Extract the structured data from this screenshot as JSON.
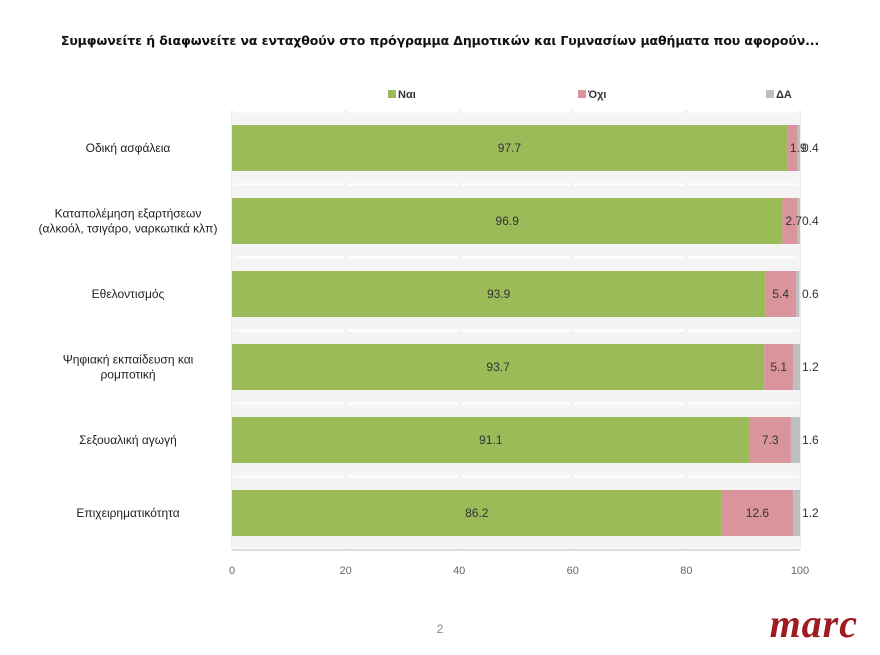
{
  "page": {
    "title": "Συμφωνείτε ή διαφωνείτε να ενταχθούν στο πρόγραμμα Δημοτικών και Γυμνασίων μαθήματα που αφορούν...",
    "page_number": "2",
    "logo_text": "marc"
  },
  "colors": {
    "yes": "#9bbb59",
    "no": "#d9959b",
    "dk": "#bfbfbf",
    "logo": "#9e1b22"
  },
  "chart_data": {
    "type": "bar",
    "orientation": "horizontal",
    "stacked": true,
    "title": "Συμφωνείτε ή διαφωνείτε να ενταχθούν στο πρόγραμμα Δημοτικών και Γυμνασίων μαθήματα που αφορούν...",
    "categories": [
      [
        "Οδική ασφάλεια"
      ],
      [
        "Καταπολέμηση εξαρτήσεων",
        "(αλκοόλ, τσιγάρο, ναρκωτικά κλπ)"
      ],
      [
        "Εθελοντισμός"
      ],
      [
        "Ψηφιακή εκπαίδευση και",
        "ρομποτική"
      ],
      [
        "Σεξουαλική αγωγή"
      ],
      [
        "Επιχειρηματικότητα"
      ]
    ],
    "series": [
      {
        "name": "Ναι",
        "color_key": "yes",
        "values": [
          97.7,
          96.9,
          93.9,
          93.7,
          91.1,
          86.2
        ]
      },
      {
        "name": "Όχι",
        "color_key": "no",
        "values": [
          1.9,
          2.7,
          5.4,
          5.1,
          7.3,
          12.6
        ]
      },
      {
        "name": "ΔΑ",
        "color_key": "dk",
        "values": [
          0.4,
          0.4,
          0.6,
          1.2,
          1.6,
          1.2
        ]
      }
    ],
    "xlim": [
      0,
      100
    ],
    "xticks": [
      0,
      20,
      40,
      60,
      80,
      100
    ],
    "legend": "top",
    "grid": true
  }
}
